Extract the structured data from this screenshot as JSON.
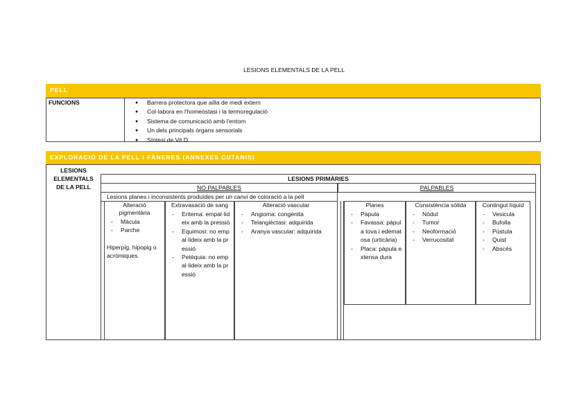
{
  "title": "LESIONS ELEMENTALS DE LA PELL",
  "pell": {
    "header": "PELL",
    "label": "FUNCIONS",
    "items": [
      "Barrera protectora que aïlla de medi extern",
      "Col·labora en l'homeòstasi i la termoregulació",
      "Sistema de comunicació amb l'entorn",
      "Un dels principals òrgans sensorials",
      "Síntesi de Vit D"
    ]
  },
  "exploracio": {
    "header": "EXPLORACIÓ DE LA PELL I FÀNERES (ANNEXES CUTANIS)",
    "label": "LESIONS ELEMENTALS DE LA PELL",
    "primaries": "LESIONS PRIMÀRIES",
    "no_palpables": {
      "label": "NO PALPABLES",
      "description": "Lesions planes i inconsistents produïdes per un canvi de coloració a la pell",
      "columns": [
        {
          "heading": "Alteració pigmentària",
          "items": [
            "Màcula",
            "Parche"
          ],
          "note": "Hiperpig, hipopig o acròmiques."
        },
        {
          "heading": "Extravasació de sang",
          "items": [
            "Eritema: empal·lideix amb la pressió",
            "Equimosi: no empal·lideix amb la pressió",
            "Petèquia: no empal·lideix amb la pressió"
          ]
        },
        {
          "heading": "Alteració vascular",
          "items": [
            "Angioma: congènita",
            "Telangièctasi: adquirida",
            "Aranya vascular: adquirida"
          ]
        }
      ]
    },
    "palpables": {
      "label": "PALPABLES",
      "columns": [
        {
          "heading": "Planes",
          "items": [
            "Pàpula",
            "Favassa: pàpula tova i edematosa (urticària)",
            "Placa: pàpula extensa dura"
          ]
        },
        {
          "heading": "Consistència sòlida",
          "items": [
            "Nòdul",
            "Tumor",
            "Neoformació",
            "Verrucositat"
          ]
        },
        {
          "heading": "Contingut líquid",
          "items": [
            "Vesicula",
            "Bufolla",
            "Pústula",
            "Quist",
            "Abscés"
          ]
        }
      ]
    }
  }
}
